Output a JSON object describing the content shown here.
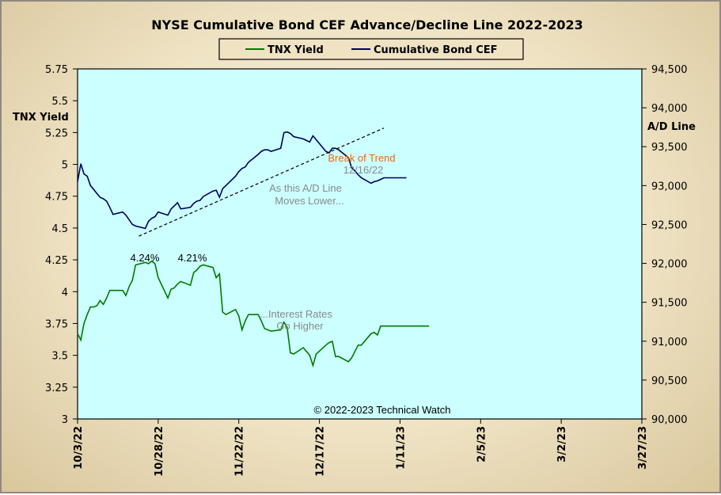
{
  "chart_data": {
    "type": "line",
    "title": "NYSE Cumulative  Bond CEF Advance/Decline  Line 2022-2023",
    "left_axis": {
      "label": "TNX Yield",
      "ylim": [
        3,
        5.75
      ],
      "ticks": [
        "5.75",
        "5.5",
        "5.25",
        "5",
        "4.75",
        "4.5",
        "4.25",
        "4",
        "3.75",
        "3.5",
        "3.25",
        "3"
      ]
    },
    "right_axis": {
      "label": "A/D Line",
      "ylim": [
        90000,
        94500
      ],
      "ticks": [
        "94,500",
        "94,000",
        "93,500",
        "93,000",
        "92,500",
        "92,000",
        "91,500",
        "91,000",
        "90,500",
        "90,000"
      ]
    },
    "x_ticks": [
      "10/3/22",
      "10/28/22",
      "11/22/22",
      "12/17/22",
      "1/11/23",
      "2/5/23",
      "3/2/23",
      "3/27/23"
    ],
    "x_range_days": [
      0,
      175
    ],
    "legend": {
      "placement": "top-center",
      "entries": [
        "TNX Yield",
        "Cumulative Bond CEF"
      ]
    },
    "colors": {
      "tnx": "#007a00",
      "ad": "#00005e",
      "plot_bg": "#ccffff",
      "annotation_orange": "#e86a10",
      "annotation_gray": "#8a8a8a"
    },
    "series": [
      {
        "name": "TNX Yield",
        "axis": "left",
        "x": [
          0,
          1,
          2,
          3,
          4,
          5,
          6,
          7,
          8,
          9,
          10,
          11,
          14,
          15,
          16,
          17,
          18,
          21,
          22,
          23,
          24,
          25,
          28,
          29,
          30,
          31,
          32,
          35,
          36,
          37,
          38,
          39,
          42,
          43,
          44,
          45,
          46,
          49,
          50,
          51,
          52,
          53,
          56,
          57,
          58,
          59,
          60,
          63,
          64,
          65,
          66,
          67,
          70,
          71,
          72,
          73,
          74,
          77,
          78,
          79,
          80,
          81,
          84,
          85,
          86,
          87,
          88,
          91,
          92,
          93,
          94,
          95,
          98,
          99,
          100,
          101,
          102,
          105,
          106,
          107,
          108,
          109
        ],
        "values": [
          3.67,
          3.62,
          3.75,
          3.82,
          3.88,
          3.88,
          3.89,
          3.93,
          3.9,
          3.95,
          4.01,
          4.01,
          4.01,
          3.97,
          4.04,
          4.09,
          4.21,
          4.23,
          4.22,
          4.24,
          4.22,
          4.11,
          3.95,
          4.02,
          4.03,
          4.06,
          4.08,
          4.05,
          4.15,
          4.17,
          4.2,
          4.21,
          4.19,
          4.11,
          4.14,
          3.84,
          3.82,
          3.86,
          3.81,
          3.7,
          3.77,
          3.82,
          3.82,
          3.77,
          3.71,
          3.7,
          3.69,
          3.7,
          3.76,
          3.72,
          3.52,
          3.51,
          3.56,
          3.53,
          3.5,
          3.42,
          3.51,
          3.58,
          3.6,
          3.61,
          3.49,
          3.49,
          3.45,
          3.48,
          3.53,
          3.58,
          3.58,
          3.67,
          3.68,
          3.66,
          3.73,
          3.73,
          3.73,
          3.73,
          3.73,
          3.73,
          3.73,
          3.73,
          3.73,
          3.73,
          3.73,
          3.73
        ]
      },
      {
        "name": "Cumulative Bond CEF",
        "axis": "right",
        "x": [
          0,
          1,
          2,
          3,
          4,
          5,
          6,
          7,
          8,
          9,
          10,
          11,
          14,
          15,
          16,
          17,
          18,
          21,
          22,
          23,
          24,
          25,
          28,
          29,
          30,
          31,
          32,
          35,
          36,
          37,
          38,
          39,
          42,
          43,
          44,
          45,
          46,
          49,
          50,
          51,
          52,
          53,
          56,
          57,
          58,
          59,
          60,
          63,
          64,
          65,
          66,
          67,
          70,
          71,
          72,
          73,
          74,
          77,
          78,
          79,
          80,
          81,
          84,
          85,
          86,
          87,
          88,
          91,
          92,
          93,
          94,
          95,
          98,
          99,
          100,
          101,
          102
        ],
        "values": [
          93050,
          93280,
          93150,
          93120,
          93000,
          92950,
          92900,
          92850,
          92830,
          92800,
          92720,
          92630,
          92660,
          92620,
          92560,
          92500,
          92480,
          92450,
          92540,
          92580,
          92600,
          92660,
          92620,
          92700,
          92740,
          92780,
          92700,
          92720,
          92770,
          92800,
          92810,
          92860,
          92930,
          92940,
          92850,
          92960,
          93000,
          93120,
          93180,
          93220,
          93240,
          93300,
          93400,
          93440,
          93460,
          93460,
          93440,
          93480,
          93680,
          93690,
          93670,
          93630,
          93600,
          93580,
          93560,
          93640,
          93590,
          93440,
          93420,
          93480,
          93480,
          93460,
          93360,
          93230,
          93190,
          93140,
          93100,
          93030,
          93050,
          93060,
          93080,
          93100,
          93100,
          93100,
          93100,
          93100,
          93100
        ]
      }
    ],
    "trendline": {
      "x": [
        19,
        95
      ],
      "values": [
        92350,
        93740
      ],
      "axis": "right",
      "style": "dashed"
    },
    "annotations": [
      {
        "text": "4.24%",
        "x": 21,
        "y": 4.24
      },
      {
        "text": "4.21%",
        "x": 37,
        "y": 4.21
      },
      {
        "text": "Break of Trend",
        "color": "orange"
      },
      {
        "text": "12/16/22",
        "color": "gray"
      },
      {
        "text": "As this A/D Line",
        "color": "gray"
      },
      {
        "text": "Moves  Lower...",
        "color": "gray"
      },
      {
        "text": "...Interest Rates",
        "color": "gray"
      },
      {
        "text": "Go Higher",
        "color": "gray"
      }
    ],
    "copyright": "© 2022-2023  Technical  Watch"
  }
}
